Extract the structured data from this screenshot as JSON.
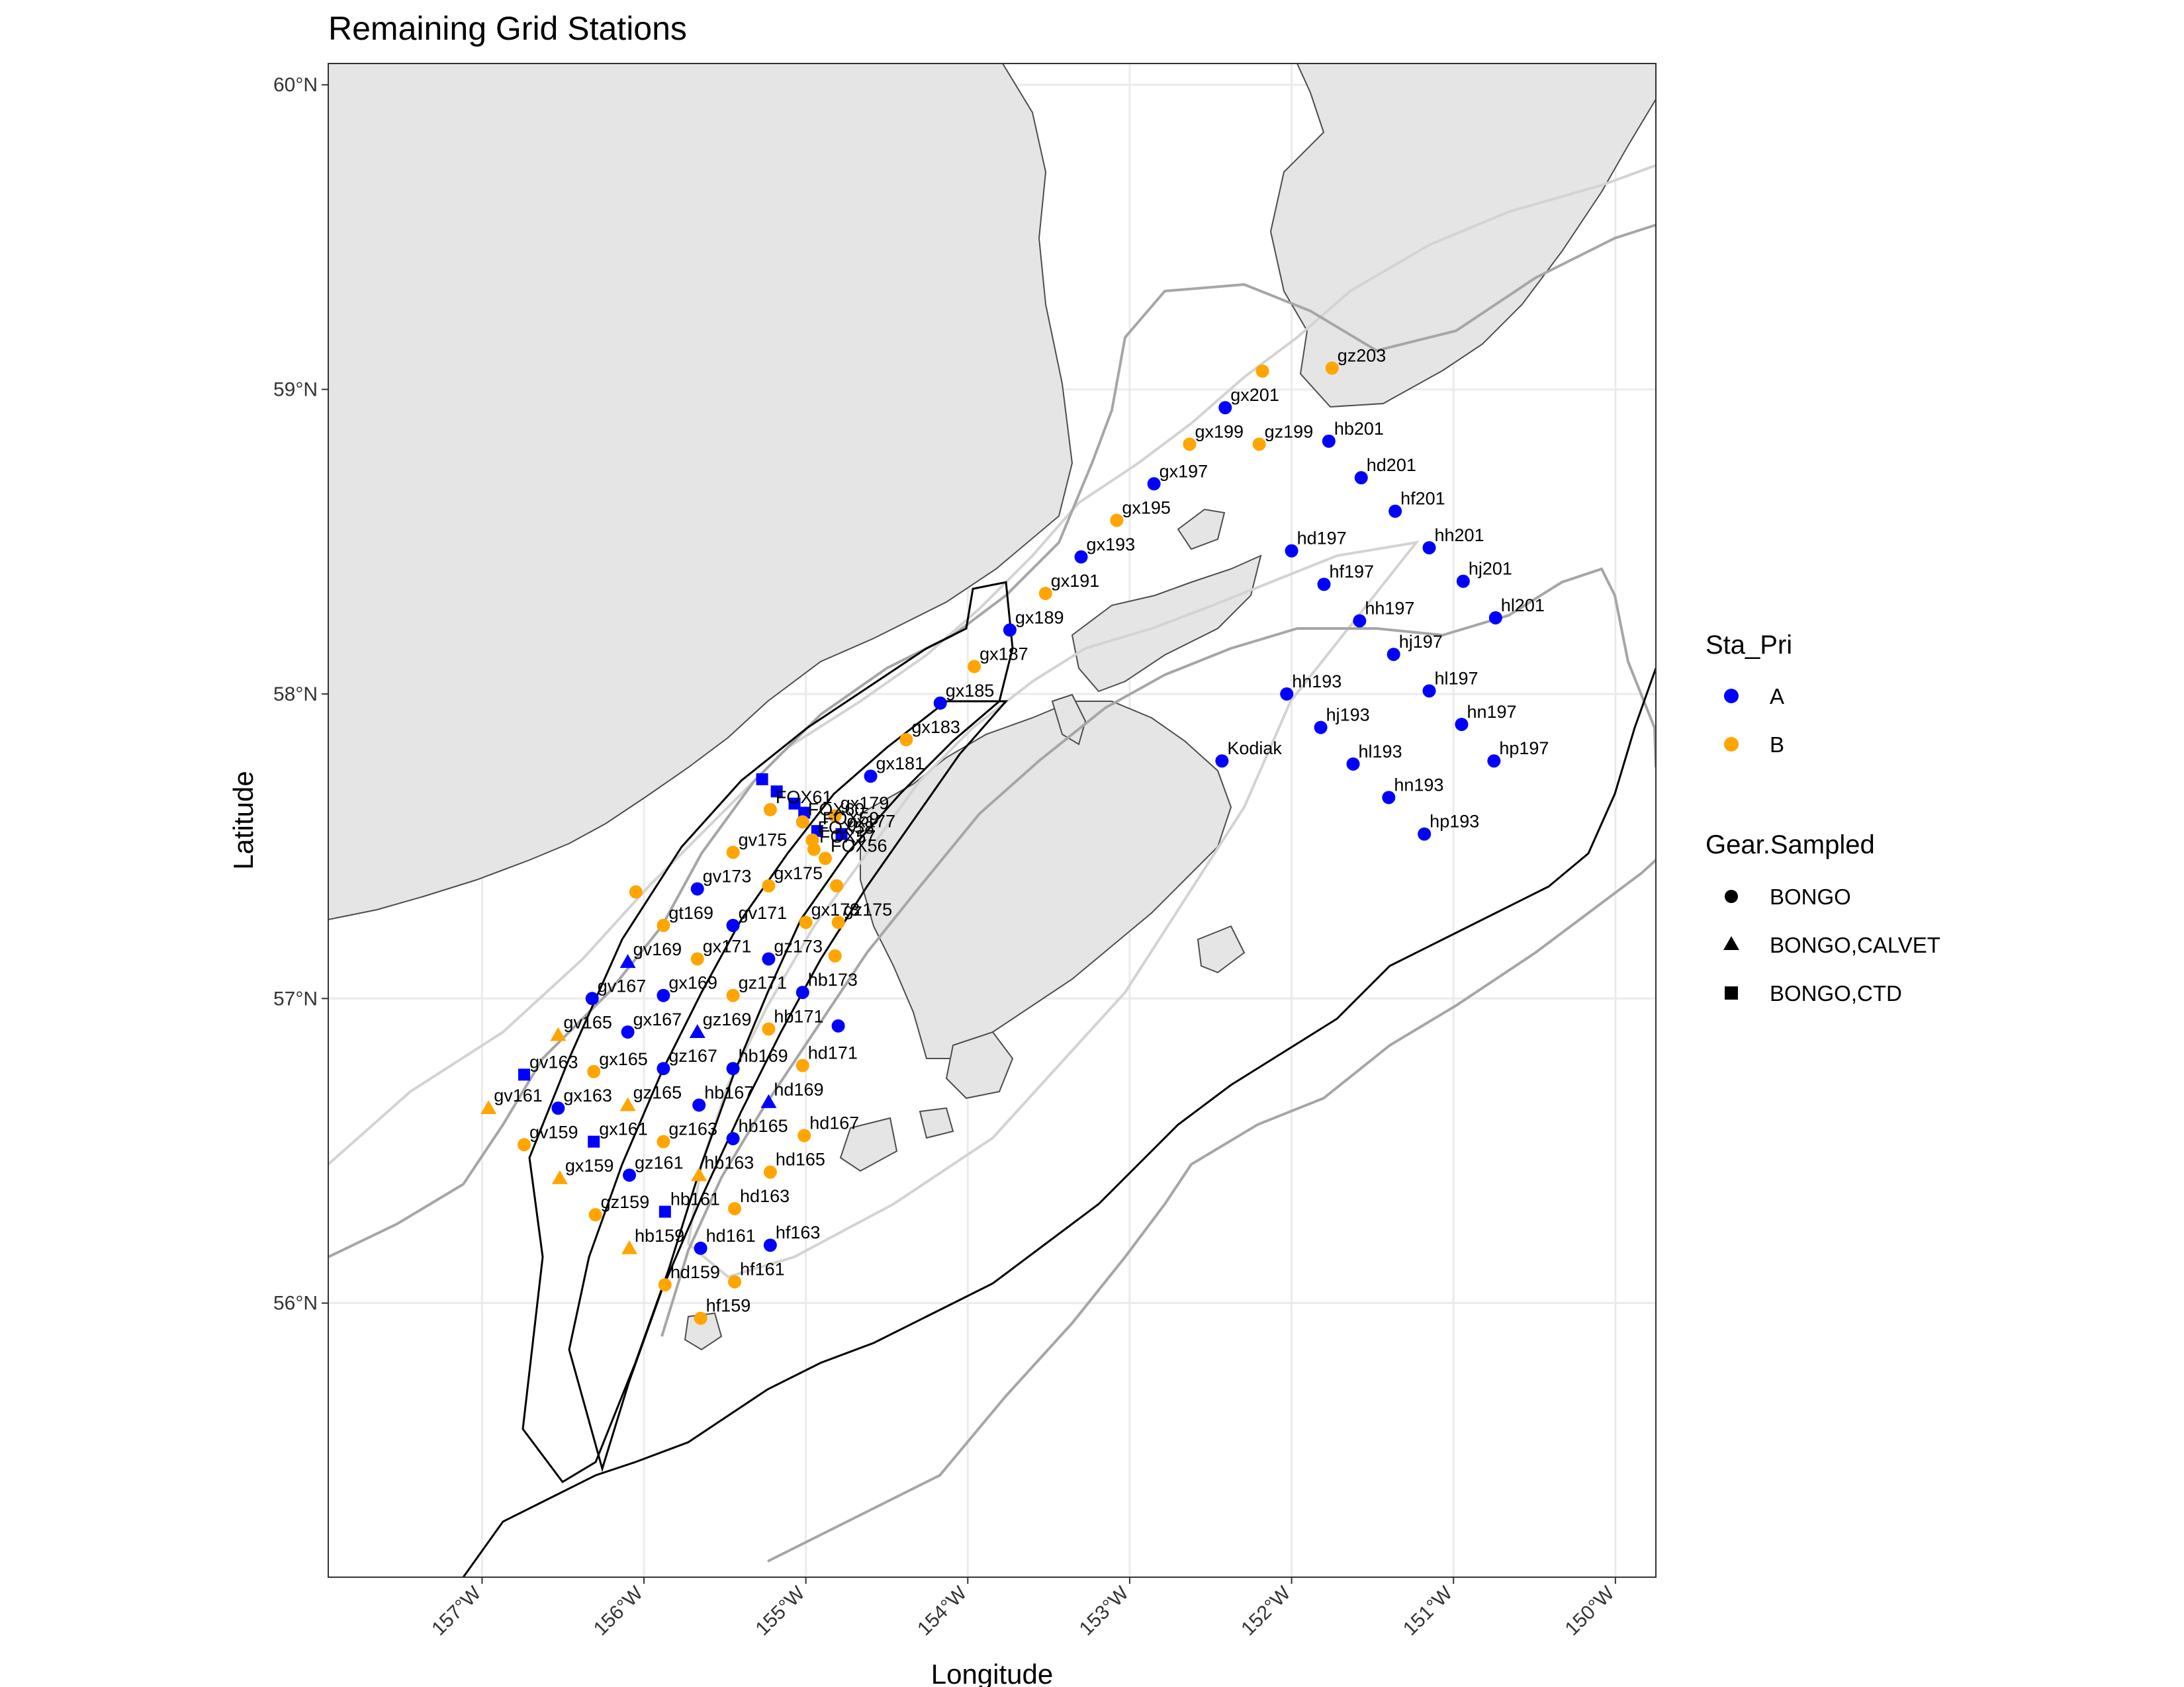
{
  "title": "Remaining Grid Stations",
  "x_axis": {
    "title": "Longitude",
    "ticks": [
      "157°W",
      "156°W",
      "155°W",
      "154°W",
      "153°W",
      "152°W",
      "151°W",
      "150°W"
    ],
    "tick_values": [
      -157,
      -156,
      -155,
      -154,
      -153,
      -152,
      -151,
      -150
    ],
    "range": [
      -157.95,
      -149.75
    ]
  },
  "y_axis": {
    "title": "Latitude",
    "ticks": [
      "56°N",
      "57°N",
      "58°N",
      "59°N",
      "60°N"
    ],
    "tick_values": [
      56,
      57,
      58,
      59,
      60
    ],
    "range": [
      55.1,
      60.07
    ]
  },
  "legend": {
    "priority": {
      "title": "Sta_Pri",
      "items": [
        {
          "label": "A",
          "color": "#0000ff"
        },
        {
          "label": "B",
          "color": "#ffa500"
        }
      ]
    },
    "gear": {
      "title": "Gear.Sampled",
      "items": [
        {
          "label": "BONGO",
          "shape": "circle"
        },
        {
          "label": "BONGO,CALVET",
          "shape": "triangle"
        },
        {
          "label": "BONGO,CTD",
          "shape": "square"
        }
      ]
    }
  },
  "colors": {
    "land": "#e5e5e5",
    "coast": "#4d4d4d",
    "grid": "#ebebeb",
    "contour_black": "#000000",
    "contour_mid": "#a6a6a6",
    "contour_light": "#d3d3d3",
    "A": "#0000ff",
    "B": "#ffa500"
  },
  "stations": [
    {
      "name": "gx201",
      "lon": -152.41,
      "lat": 58.94,
      "pri": "A",
      "gear": "BONGO"
    },
    {
      "name": "",
      "lon": -152.18,
      "lat": 59.06,
      "pri": "B",
      "gear": "BONGO"
    },
    {
      "name": "gz203",
      "lon": -151.75,
      "lat": 59.07,
      "pri": "B",
      "gear": "BONGO"
    },
    {
      "name": "gx199",
      "lon": -152.63,
      "lat": 58.82,
      "pri": "B",
      "gear": "BONGO"
    },
    {
      "name": "gz199",
      "lon": -152.2,
      "lat": 58.82,
      "pri": "B",
      "gear": "BONGO"
    },
    {
      "name": "hb201",
      "lon": -151.77,
      "lat": 58.83,
      "pri": "A",
      "gear": "BONGO"
    },
    {
      "name": "gx197",
      "lon": -152.85,
      "lat": 58.69,
      "pri": "A",
      "gear": "BONGO"
    },
    {
      "name": "hd201",
      "lon": -151.57,
      "lat": 58.71,
      "pri": "A",
      "gear": "BONGO"
    },
    {
      "name": "gx195",
      "lon": -153.08,
      "lat": 58.57,
      "pri": "B",
      "gear": "BONGO"
    },
    {
      "name": "hf201",
      "lon": -151.36,
      "lat": 58.6,
      "pri": "A",
      "gear": "BONGO"
    },
    {
      "name": "gx193",
      "lon": -153.3,
      "lat": 58.45,
      "pri": "A",
      "gear": "BONGO"
    },
    {
      "name": "hd197",
      "lon": -152.0,
      "lat": 58.47,
      "pri": "A",
      "gear": "BONGO"
    },
    {
      "name": "hh201",
      "lon": -151.15,
      "lat": 58.48,
      "pri": "A",
      "gear": "BONGO"
    },
    {
      "name": "gx191",
      "lon": -153.52,
      "lat": 58.33,
      "pri": "B",
      "gear": "BONGO"
    },
    {
      "name": "hf197",
      "lon": -151.8,
      "lat": 58.36,
      "pri": "A",
      "gear": "BONGO"
    },
    {
      "name": "hj201",
      "lon": -150.94,
      "lat": 58.37,
      "pri": "A",
      "gear": "BONGO"
    },
    {
      "name": "gx189",
      "lon": -153.74,
      "lat": 58.21,
      "pri": "A",
      "gear": "BONGO"
    },
    {
      "name": "hh197",
      "lon": -151.58,
      "lat": 58.24,
      "pri": "A",
      "gear": "BONGO"
    },
    {
      "name": "hl201",
      "lon": -150.74,
      "lat": 58.25,
      "pri": "A",
      "gear": "BONGO"
    },
    {
      "name": "gx187",
      "lon": -153.96,
      "lat": 58.09,
      "pri": "B",
      "gear": "BONGO"
    },
    {
      "name": "hj197",
      "lon": -151.37,
      "lat": 58.13,
      "pri": "A",
      "gear": "BONGO"
    },
    {
      "name": "gx185",
      "lon": -154.17,
      "lat": 57.97,
      "pri": "A",
      "gear": "BONGO"
    },
    {
      "name": "hh193",
      "lon": -152.03,
      "lat": 58.0,
      "pri": "A",
      "gear": "BONGO"
    },
    {
      "name": "hl197",
      "lon": -151.15,
      "lat": 58.01,
      "pri": "A",
      "gear": "BONGO"
    },
    {
      "name": "gx183",
      "lon": -154.38,
      "lat": 57.85,
      "pri": "B",
      "gear": "BONGO"
    },
    {
      "name": "hj193",
      "lon": -151.82,
      "lat": 57.89,
      "pri": "A",
      "gear": "BONGO"
    },
    {
      "name": "hn197",
      "lon": -150.95,
      "lat": 57.9,
      "pri": "A",
      "gear": "BONGO"
    },
    {
      "name": "Kodiak",
      "lon": -152.43,
      "lat": 57.78,
      "pri": "A",
      "gear": "BONGO"
    },
    {
      "name": "gx181",
      "lon": -154.6,
      "lat": 57.73,
      "pri": "A",
      "gear": "BONGO"
    },
    {
      "name": "hl193",
      "lon": -151.62,
      "lat": 57.77,
      "pri": "A",
      "gear": "BONGO"
    },
    {
      "name": "hp197",
      "lon": -150.75,
      "lat": 57.78,
      "pri": "A",
      "gear": "BONGO"
    },
    {
      "name": "hn193",
      "lon": -151.4,
      "lat": 57.66,
      "pri": "A",
      "gear": "BONGO"
    },
    {
      "name": "",
      "lon": -155.27,
      "lat": 57.72,
      "pri": "A",
      "gear": "BONGO,CTD"
    },
    {
      "name": "",
      "lon": -155.18,
      "lat": 57.68,
      "pri": "A",
      "gear": "BONGO,CTD"
    },
    {
      "name": "",
      "lon": -155.07,
      "lat": 57.64,
      "pri": "A",
      "gear": "BONGO,CTD"
    },
    {
      "name": "",
      "lon": -155.01,
      "lat": 57.61,
      "pri": "A",
      "gear": "BONGO,CTD"
    },
    {
      "name": "FOX61",
      "lon": -155.22,
      "lat": 57.62,
      "pri": "B",
      "gear": "BONGO"
    },
    {
      "name": "gx179",
      "lon": -154.82,
      "lat": 57.6,
      "pri": "B",
      "gear": "BONGO"
    },
    {
      "name": "FOX60",
      "lon": -155.02,
      "lat": 57.58,
      "pri": "B",
      "gear": "BONGO"
    },
    {
      "name": "FOX59",
      "lon": -154.93,
      "lat": 57.55,
      "pri": "A",
      "gear": "BONGO,CTD"
    },
    {
      "name": "gx177",
      "lon": -154.78,
      "lat": 57.54,
      "pri": "A",
      "gear": "BONGO,CTD"
    },
    {
      "name": "hp193",
      "lon": -151.18,
      "lat": 57.54,
      "pri": "A",
      "gear": "BONGO"
    },
    {
      "name": "FOX58",
      "lon": -154.96,
      "lat": 57.52,
      "pri": "B",
      "gear": "BONGO"
    },
    {
      "name": "gv175",
      "lon": -155.45,
      "lat": 57.48,
      "pri": "B",
      "gear": "BONGO"
    },
    {
      "name": "FOX57",
      "lon": -154.95,
      "lat": 57.49,
      "pri": "B",
      "gear": "BONGO"
    },
    {
      "name": "FOX56",
      "lon": -154.88,
      "lat": 57.46,
      "pri": "B",
      "gear": "BONGO"
    },
    {
      "name": "",
      "lon": -156.05,
      "lat": 57.35,
      "pri": "B",
      "gear": "BONGO"
    },
    {
      "name": "gv173",
      "lon": -155.67,
      "lat": 57.36,
      "pri": "A",
      "gear": "BONGO"
    },
    {
      "name": "gx175",
      "lon": -155.23,
      "lat": 57.37,
      "pri": "B",
      "gear": "BONGO"
    },
    {
      "name": "",
      "lon": -154.81,
      "lat": 57.37,
      "pri": "B",
      "gear": "BONGO"
    },
    {
      "name": "gt169",
      "lon": -155.88,
      "lat": 57.24,
      "pri": "B",
      "gear": "BONGO"
    },
    {
      "name": "gv171",
      "lon": -155.45,
      "lat": 57.24,
      "pri": "A",
      "gear": "BONGO"
    },
    {
      "name": "gx173",
      "lon": -155.0,
      "lat": 57.25,
      "pri": "B",
      "gear": "BONGO"
    },
    {
      "name": "gz175",
      "lon": -154.8,
      "lat": 57.25,
      "pri": "B",
      "gear": "BONGO"
    },
    {
      "name": "gv169",
      "lon": -156.1,
      "lat": 57.12,
      "pri": "A",
      "gear": "BONGO,CALVET"
    },
    {
      "name": "gx171",
      "lon": -155.67,
      "lat": 57.13,
      "pri": "B",
      "gear": "BONGO"
    },
    {
      "name": "gz173",
      "lon": -155.23,
      "lat": 57.13,
      "pri": "A",
      "gear": "BONGO"
    },
    {
      "name": "",
      "lon": -154.82,
      "lat": 57.14,
      "pri": "B",
      "gear": "BONGO"
    },
    {
      "name": "gv167",
      "lon": -156.32,
      "lat": 57.0,
      "pri": "A",
      "gear": "BONGO"
    },
    {
      "name": "gx169",
      "lon": -155.88,
      "lat": 57.01,
      "pri": "A",
      "gear": "BONGO"
    },
    {
      "name": "gz171",
      "lon": -155.45,
      "lat": 57.01,
      "pri": "B",
      "gear": "BONGO"
    },
    {
      "name": "hb173",
      "lon": -155.02,
      "lat": 57.02,
      "pri": "A",
      "gear": "BONGO"
    },
    {
      "name": "gv165",
      "lon": -156.53,
      "lat": 56.88,
      "pri": "B",
      "gear": "BONGO,CALVET"
    },
    {
      "name": "gx167",
      "lon": -156.1,
      "lat": 56.89,
      "pri": "A",
      "gear": "BONGO"
    },
    {
      "name": "gz169",
      "lon": -155.67,
      "lat": 56.89,
      "pri": "A",
      "gear": "BONGO,CALVET"
    },
    {
      "name": "hb171",
      "lon": -155.23,
      "lat": 56.9,
      "pri": "B",
      "gear": "BONGO"
    },
    {
      "name": "",
      "lon": -154.8,
      "lat": 56.91,
      "pri": "A",
      "gear": "BONGO"
    },
    {
      "name": "gv163",
      "lon": -156.74,
      "lat": 56.75,
      "pri": "A",
      "gear": "BONGO,CTD"
    },
    {
      "name": "gx165",
      "lon": -156.31,
      "lat": 56.76,
      "pri": "B",
      "gear": "BONGO"
    },
    {
      "name": "gz167",
      "lon": -155.88,
      "lat": 56.77,
      "pri": "A",
      "gear": "BONGO"
    },
    {
      "name": "hb169",
      "lon": -155.45,
      "lat": 56.77,
      "pri": "A",
      "gear": "BONGO"
    },
    {
      "name": "hd171",
      "lon": -155.02,
      "lat": 56.78,
      "pri": "B",
      "gear": "BONGO"
    },
    {
      "name": "gv161",
      "lon": -156.96,
      "lat": 56.64,
      "pri": "B",
      "gear": "BONGO,CALVET"
    },
    {
      "name": "gx163",
      "lon": -156.53,
      "lat": 56.64,
      "pri": "A",
      "gear": "BONGO"
    },
    {
      "name": "gz165",
      "lon": -156.1,
      "lat": 56.65,
      "pri": "B",
      "gear": "BONGO,CALVET"
    },
    {
      "name": "hb167",
      "lon": -155.66,
      "lat": 56.65,
      "pri": "A",
      "gear": "BONGO"
    },
    {
      "name": "hd169",
      "lon": -155.23,
      "lat": 56.66,
      "pri": "A",
      "gear": "BONGO,CALVET"
    },
    {
      "name": "gv159",
      "lon": -156.74,
      "lat": 56.52,
      "pri": "B",
      "gear": "BONGO"
    },
    {
      "name": "gx161",
      "lon": -156.31,
      "lat": 56.53,
      "pri": "A",
      "gear": "BONGO,CTD"
    },
    {
      "name": "gz163",
      "lon": -155.88,
      "lat": 56.53,
      "pri": "B",
      "gear": "BONGO"
    },
    {
      "name": "hb165",
      "lon": -155.45,
      "lat": 56.54,
      "pri": "A",
      "gear": "BONGO"
    },
    {
      "name": "hd167",
      "lon": -155.01,
      "lat": 56.55,
      "pri": "B",
      "gear": "BONGO"
    },
    {
      "name": "gx159",
      "lon": -156.52,
      "lat": 56.41,
      "pri": "B",
      "gear": "BONGO,CALVET"
    },
    {
      "name": "gz161",
      "lon": -156.09,
      "lat": 56.42,
      "pri": "A",
      "gear": "BONGO"
    },
    {
      "name": "hb163",
      "lon": -155.66,
      "lat": 56.42,
      "pri": "B",
      "gear": "BONGO,CALVET"
    },
    {
      "name": "hd165",
      "lon": -155.22,
      "lat": 56.43,
      "pri": "B",
      "gear": "BONGO"
    },
    {
      "name": "gz159",
      "lon": -156.3,
      "lat": 56.29,
      "pri": "B",
      "gear": "BONGO"
    },
    {
      "name": "hb161",
      "lon": -155.87,
      "lat": 56.3,
      "pri": "A",
      "gear": "BONGO,CTD"
    },
    {
      "name": "hd163",
      "lon": -155.44,
      "lat": 56.31,
      "pri": "B",
      "gear": "BONGO"
    },
    {
      "name": "hb159",
      "lon": -156.09,
      "lat": 56.18,
      "pri": "B",
      "gear": "BONGO,CALVET"
    },
    {
      "name": "hd161",
      "lon": -155.65,
      "lat": 56.18,
      "pri": "A",
      "gear": "BONGO"
    },
    {
      "name": "hf163",
      "lon": -155.22,
      "lat": 56.19,
      "pri": "A",
      "gear": "BONGO"
    },
    {
      "name": "hd159",
      "lon": -155.87,
      "lat": 56.06,
      "pri": "B",
      "gear": "BONGO"
    },
    {
      "name": "hf161",
      "lon": -155.44,
      "lat": 56.07,
      "pri": "B",
      "gear": "BONGO"
    },
    {
      "name": "hf159",
      "lon": -155.65,
      "lat": 55.95,
      "pri": "B",
      "gear": "BONGO"
    }
  ]
}
